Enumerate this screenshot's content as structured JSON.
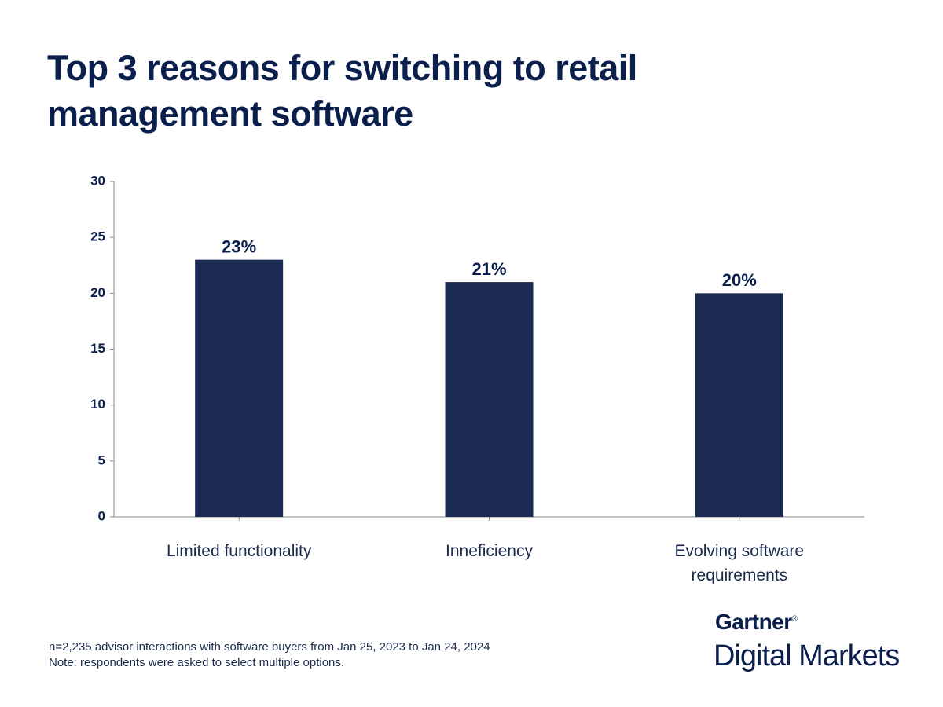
{
  "chart_data": {
    "type": "bar",
    "title": "Top 3 reasons for switching to retail management software",
    "categories": [
      "Limited functionality",
      "Inneficiency",
      "Evolving software requirements"
    ],
    "values": [
      23,
      21,
      20
    ],
    "value_labels": [
      "23%",
      "21%",
      "20%"
    ],
    "color": "#1b2a52",
    "ylim": [
      0,
      30
    ],
    "yticks": [
      0,
      5,
      10,
      15,
      20,
      25,
      30
    ],
    "notes": [
      "n=2,235 advisor interactions with software buyers from Jan 25, 2023 to Jan 24, 2024",
      "Note: respondents were asked to select multiple options."
    ]
  },
  "brand": {
    "name": "Gartner",
    "mark": "®",
    "product": "Digital Markets"
  }
}
